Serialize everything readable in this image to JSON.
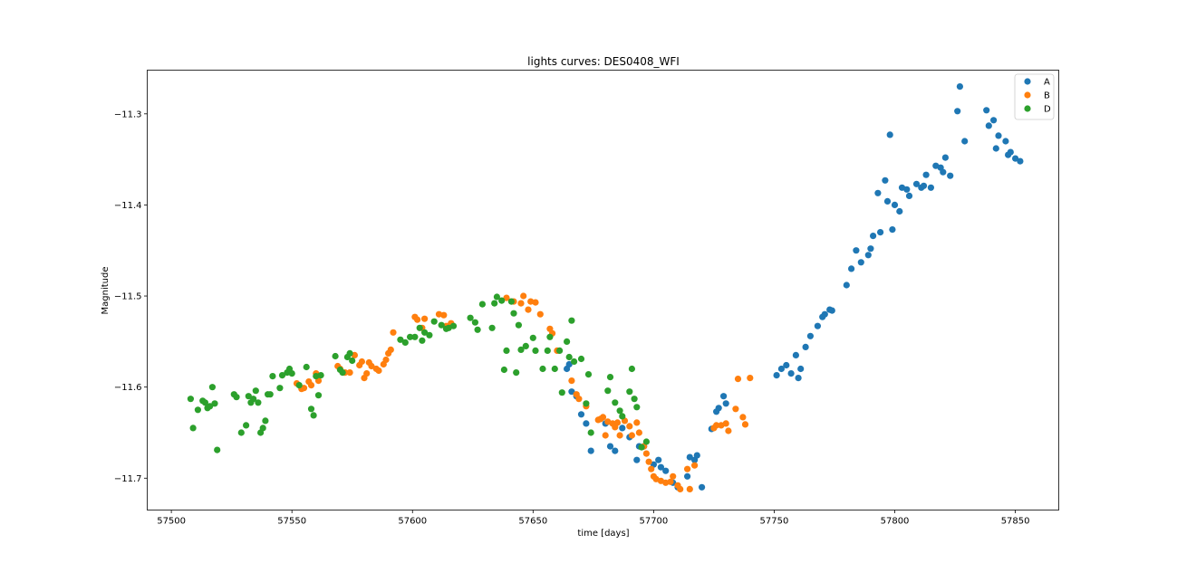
{
  "chart_data": {
    "type": "scatter",
    "title": "lights curves: DES0408_WFI",
    "xlabel": "time [days]",
    "ylabel": "Magnitude",
    "xlim": [
      57490,
      57868
    ],
    "ylim": [
      -11.735,
      -11.252
    ],
    "xticks": [
      57500,
      57550,
      57600,
      57650,
      57700,
      57750,
      57800,
      57850
    ],
    "yticks": [
      -11.7,
      -11.6,
      -11.5,
      -11.4,
      -11.3
    ],
    "xtick_labels": [
      "57500",
      "57550",
      "57600",
      "57650",
      "57700",
      "57750",
      "57800",
      "57850"
    ],
    "ytick_labels": [
      "−11.7",
      "−11.6",
      "−11.5",
      "−11.4",
      "−11.3"
    ],
    "grid": false,
    "legend_position": "top-right",
    "series": [
      {
        "name": "A",
        "color": "#1f77b4",
        "points": [
          [
            57664,
            -11.58
          ],
          [
            57665,
            -11.575
          ],
          [
            57666,
            -11.605
          ],
          [
            57668,
            -11.61
          ],
          [
            57670,
            -11.63
          ],
          [
            57672,
            -11.64
          ],
          [
            57674,
            -11.67
          ],
          [
            57680,
            -11.64
          ],
          [
            57682,
            -11.665
          ],
          [
            57684,
            -11.67
          ],
          [
            57687,
            -11.645
          ],
          [
            57690,
            -11.655
          ],
          [
            57693,
            -11.68
          ],
          [
            57694,
            -11.665
          ],
          [
            57696,
            -11.665
          ],
          [
            57700,
            -11.685
          ],
          [
            57702,
            -11.68
          ],
          [
            57703,
            -11.688
          ],
          [
            57705,
            -11.692
          ],
          [
            57708,
            -11.705
          ],
          [
            57710,
            -11.71
          ],
          [
            57714,
            -11.698
          ],
          [
            57715,
            -11.677
          ],
          [
            57717,
            -11.68
          ],
          [
            57718,
            -11.675
          ],
          [
            57720,
            -11.71
          ],
          [
            57724,
            -11.646
          ],
          [
            57726,
            -11.627
          ],
          [
            57727,
            -11.623
          ],
          [
            57729,
            -11.61
          ],
          [
            57730,
            -11.618
          ],
          [
            57751,
            -11.587
          ],
          [
            57753,
            -11.58
          ],
          [
            57755,
            -11.576
          ],
          [
            57757,
            -11.585
          ],
          [
            57759,
            -11.565
          ],
          [
            57760,
            -11.59
          ],
          [
            57761,
            -11.58
          ],
          [
            57763,
            -11.556
          ],
          [
            57765,
            -11.544
          ],
          [
            57768,
            -11.533
          ],
          [
            57770,
            -11.523
          ],
          [
            57771,
            -11.52
          ],
          [
            57773,
            -11.515
          ],
          [
            57774,
            -11.516
          ],
          [
            57780,
            -11.488
          ],
          [
            57782,
            -11.47
          ],
          [
            57784,
            -11.45
          ],
          [
            57786,
            -11.463
          ],
          [
            57789,
            -11.455
          ],
          [
            57790,
            -11.448
          ],
          [
            57791,
            -11.434
          ],
          [
            57793,
            -11.387
          ],
          [
            57794,
            -11.43
          ],
          [
            57796,
            -11.373
          ],
          [
            57797,
            -11.396
          ],
          [
            57798,
            -11.323
          ],
          [
            57799,
            -11.427
          ],
          [
            57800,
            -11.4
          ],
          [
            57802,
            -11.407
          ],
          [
            57803,
            -11.381
          ],
          [
            57805,
            -11.383
          ],
          [
            57806,
            -11.39
          ],
          [
            57809,
            -11.377
          ],
          [
            57811,
            -11.381
          ],
          [
            57812,
            -11.379
          ],
          [
            57813,
            -11.367
          ],
          [
            57815,
            -11.381
          ],
          [
            57817,
            -11.357
          ],
          [
            57819,
            -11.359
          ],
          [
            57820,
            -11.364
          ],
          [
            57821,
            -11.348
          ],
          [
            57823,
            -11.368
          ],
          [
            57826,
            -11.297
          ],
          [
            57827,
            -11.27
          ],
          [
            57829,
            -11.33
          ],
          [
            57838,
            -11.296
          ],
          [
            57839,
            -11.313
          ],
          [
            57841,
            -11.307
          ],
          [
            57842,
            -11.338
          ],
          [
            57843,
            -11.324
          ],
          [
            57846,
            -11.33
          ],
          [
            57847,
            -11.345
          ],
          [
            57848,
            -11.342
          ],
          [
            57850,
            -11.349
          ],
          [
            57852,
            -11.352
          ]
        ]
      },
      {
        "name": "B",
        "color": "#ff7f0e",
        "points": [
          [
            57552,
            -11.596
          ],
          [
            57554,
            -11.602
          ],
          [
            57555,
            -11.601
          ],
          [
            57557,
            -11.594
          ],
          [
            57558,
            -11.598
          ],
          [
            57560,
            -11.585
          ],
          [
            57561,
            -11.593
          ],
          [
            57569,
            -11.577
          ],
          [
            57570,
            -11.58
          ],
          [
            57572,
            -11.584
          ],
          [
            57574,
            -11.584
          ],
          [
            57576,
            -11.565
          ],
          [
            57578,
            -11.576
          ],
          [
            57579,
            -11.572
          ],
          [
            57580,
            -11.59
          ],
          [
            57581,
            -11.585
          ],
          [
            57582,
            -11.573
          ],
          [
            57583,
            -11.577
          ],
          [
            57585,
            -11.58
          ],
          [
            57586,
            -11.582
          ],
          [
            57588,
            -11.575
          ],
          [
            57589,
            -11.57
          ],
          [
            57590,
            -11.563
          ],
          [
            57591,
            -11.559
          ],
          [
            57592,
            -11.54
          ],
          [
            57601,
            -11.523
          ],
          [
            57602,
            -11.526
          ],
          [
            57604,
            -11.535
          ],
          [
            57605,
            -11.525
          ],
          [
            57611,
            -11.52
          ],
          [
            57613,
            -11.521
          ],
          [
            57614,
            -11.533
          ],
          [
            57616,
            -11.53
          ],
          [
            57639,
            -11.502
          ],
          [
            57642,
            -11.506
          ],
          [
            57645,
            -11.508
          ],
          [
            57646,
            -11.5
          ],
          [
            57648,
            -11.515
          ],
          [
            57649,
            -11.506
          ],
          [
            57651,
            -11.507
          ],
          [
            57653,
            -11.52
          ],
          [
            57657,
            -11.536
          ],
          [
            57658,
            -11.541
          ],
          [
            57660,
            -11.56
          ],
          [
            57666,
            -11.593
          ],
          [
            57668,
            -11.608
          ],
          [
            57669,
            -11.613
          ],
          [
            57672,
            -11.621
          ],
          [
            57677,
            -11.636
          ],
          [
            57678,
            -11.635
          ],
          [
            57679,
            -11.633
          ],
          [
            57680,
            -11.653
          ],
          [
            57681,
            -11.638
          ],
          [
            57683,
            -11.64
          ],
          [
            57684,
            -11.644
          ],
          [
            57685,
            -11.639
          ],
          [
            57686,
            -11.653
          ],
          [
            57688,
            -11.637
          ],
          [
            57690,
            -11.643
          ],
          [
            57691,
            -11.653
          ],
          [
            57693,
            -11.639
          ],
          [
            57694,
            -11.65
          ],
          [
            57696,
            -11.665
          ],
          [
            57697,
            -11.673
          ],
          [
            57698,
            -11.682
          ],
          [
            57699,
            -11.69
          ],
          [
            57700,
            -11.698
          ],
          [
            57701,
            -11.701
          ],
          [
            57703,
            -11.703
          ],
          [
            57705,
            -11.705
          ],
          [
            57707,
            -11.704
          ],
          [
            57708,
            -11.698
          ],
          [
            57710,
            -11.708
          ],
          [
            57711,
            -11.712
          ],
          [
            57714,
            -11.69
          ],
          [
            57715,
            -11.712
          ],
          [
            57717,
            -11.686
          ],
          [
            57725,
            -11.645
          ],
          [
            57726,
            -11.642
          ],
          [
            57728,
            -11.642
          ],
          [
            57730,
            -11.64
          ],
          [
            57731,
            -11.648
          ],
          [
            57734,
            -11.624
          ],
          [
            57735,
            -11.591
          ],
          [
            57737,
            -11.633
          ],
          [
            57738,
            -11.641
          ],
          [
            57740,
            -11.59
          ]
        ]
      },
      {
        "name": "D",
        "color": "#2ca02c",
        "points": [
          [
            57508,
            -11.613
          ],
          [
            57509,
            -11.645
          ],
          [
            57511,
            -11.625
          ],
          [
            57513,
            -11.615
          ],
          [
            57514,
            -11.617
          ],
          [
            57515,
            -11.623
          ],
          [
            57516,
            -11.621
          ],
          [
            57517,
            -11.6
          ],
          [
            57518,
            -11.618
          ],
          [
            57519,
            -11.669
          ],
          [
            57526,
            -11.608
          ],
          [
            57527,
            -11.611
          ],
          [
            57529,
            -11.65
          ],
          [
            57531,
            -11.642
          ],
          [
            57532,
            -11.61
          ],
          [
            57533,
            -11.617
          ],
          [
            57534,
            -11.613
          ],
          [
            57535,
            -11.604
          ],
          [
            57536,
            -11.617
          ],
          [
            57537,
            -11.65
          ],
          [
            57538,
            -11.645
          ],
          [
            57539,
            -11.637
          ],
          [
            57540,
            -11.608
          ],
          [
            57541,
            -11.608
          ],
          [
            57542,
            -11.588
          ],
          [
            57545,
            -11.601
          ],
          [
            57546,
            -11.587
          ],
          [
            57548,
            -11.584
          ],
          [
            57549,
            -11.58
          ],
          [
            57550,
            -11.585
          ],
          [
            57553,
            -11.598
          ],
          [
            57556,
            -11.578
          ],
          [
            57558,
            -11.624
          ],
          [
            57559,
            -11.631
          ],
          [
            57560,
            -11.588
          ],
          [
            57561,
            -11.609
          ],
          [
            57562,
            -11.587
          ],
          [
            57568,
            -11.566
          ],
          [
            57570,
            -11.581
          ],
          [
            57571,
            -11.584
          ],
          [
            57573,
            -11.567
          ],
          [
            57574,
            -11.563
          ],
          [
            57575,
            -11.571
          ],
          [
            57595,
            -11.548
          ],
          [
            57597,
            -11.551
          ],
          [
            57599,
            -11.545
          ],
          [
            57601,
            -11.545
          ],
          [
            57603,
            -11.535
          ],
          [
            57604,
            -11.549
          ],
          [
            57605,
            -11.54
          ],
          [
            57607,
            -11.543
          ],
          [
            57609,
            -11.528
          ],
          [
            57612,
            -11.532
          ],
          [
            57614,
            -11.536
          ],
          [
            57615,
            -11.535
          ],
          [
            57617,
            -11.533
          ],
          [
            57624,
            -11.524
          ],
          [
            57626,
            -11.529
          ],
          [
            57627,
            -11.537
          ],
          [
            57629,
            -11.509
          ],
          [
            57633,
            -11.535
          ],
          [
            57634,
            -11.508
          ],
          [
            57635,
            -11.501
          ],
          [
            57637,
            -11.505
          ],
          [
            57638,
            -11.581
          ],
          [
            57639,
            -11.56
          ],
          [
            57641,
            -11.506
          ],
          [
            57642,
            -11.519
          ],
          [
            57643,
            -11.584
          ],
          [
            57644,
            -11.532
          ],
          [
            57645,
            -11.559
          ],
          [
            57647,
            -11.555
          ],
          [
            57650,
            -11.546
          ],
          [
            57651,
            -11.56
          ],
          [
            57654,
            -11.58
          ],
          [
            57656,
            -11.56
          ],
          [
            57657,
            -11.545
          ],
          [
            57659,
            -11.58
          ],
          [
            57661,
            -11.56
          ],
          [
            57662,
            -11.606
          ],
          [
            57664,
            -11.55
          ],
          [
            57665,
            -11.567
          ],
          [
            57666,
            -11.527
          ],
          [
            57667,
            -11.572
          ],
          [
            57670,
            -11.569
          ],
          [
            57673,
            -11.586
          ],
          [
            57674,
            -11.65
          ],
          [
            57672,
            -11.618
          ],
          [
            57681,
            -11.604
          ],
          [
            57682,
            -11.589
          ],
          [
            57684,
            -11.617
          ],
          [
            57686,
            -11.626
          ],
          [
            57687,
            -11.632
          ],
          [
            57690,
            -11.605
          ],
          [
            57691,
            -11.58
          ],
          [
            57692,
            -11.613
          ],
          [
            57693,
            -11.622
          ],
          [
            57695,
            -11.666
          ],
          [
            57697,
            -11.66
          ]
        ]
      }
    ]
  }
}
